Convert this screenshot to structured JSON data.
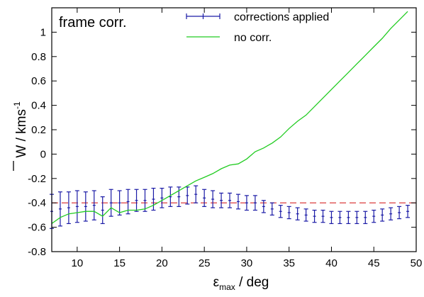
{
  "chart_data": {
    "type": "line",
    "panel_label": "frame corr.",
    "xlabel": {
      "main": "ε",
      "sub": "max",
      "rest": " / deg"
    },
    "ylabel": {
      "main": "W",
      "rest": " / kms",
      "sup": "-1"
    },
    "xlim": [
      7,
      50
    ],
    "ylim": [
      -0.8,
      1.2
    ],
    "xticks": [
      10,
      15,
      20,
      25,
      30,
      35,
      40,
      45,
      50
    ],
    "yticks": [
      -0.8,
      -0.6,
      -0.4,
      -0.2,
      0,
      0.2,
      0.4,
      0.6,
      0.8,
      1
    ],
    "ytick_labels": [
      "-0.8",
      "-0.6",
      "-0.4",
      "-0.2",
      "0",
      "0.2",
      "0.4",
      "0.6",
      "0.8",
      "1"
    ],
    "grid": false,
    "legend_position": "top-center",
    "reference_line": {
      "y": -0.4,
      "color": "#d62728",
      "style": "dashed"
    },
    "series": [
      {
        "name": "corrections applied",
        "kind": "errorbar",
        "color": "#1a1aa6",
        "x": [
          7,
          8,
          9,
          10,
          11,
          12,
          13,
          14,
          15,
          16,
          17,
          18,
          19,
          20,
          21,
          22,
          23,
          24,
          25,
          26,
          27,
          28,
          29,
          30,
          31,
          32,
          33,
          34,
          35,
          36,
          37,
          38,
          39,
          40,
          41,
          42,
          43,
          44,
          45,
          46,
          47,
          48,
          49
        ],
        "y": [
          -0.47,
          -0.45,
          -0.44,
          -0.43,
          -0.43,
          -0.42,
          -0.46,
          -0.4,
          -0.4,
          -0.39,
          -0.38,
          -0.38,
          -0.37,
          -0.36,
          -0.35,
          -0.35,
          -0.34,
          -0.33,
          -0.36,
          -0.37,
          -0.38,
          -0.38,
          -0.39,
          -0.4,
          -0.4,
          -0.43,
          -0.45,
          -0.47,
          -0.48,
          -0.49,
          -0.5,
          -0.51,
          -0.51,
          -0.52,
          -0.52,
          -0.52,
          -0.52,
          -0.52,
          -0.51,
          -0.5,
          -0.49,
          -0.48,
          -0.47
        ],
        "err": [
          0.14,
          0.14,
          0.13,
          0.13,
          0.12,
          0.12,
          0.11,
          0.11,
          0.1,
          0.1,
          0.09,
          0.09,
          0.09,
          0.08,
          0.08,
          0.08,
          0.07,
          0.07,
          0.07,
          0.07,
          0.06,
          0.06,
          0.06,
          0.06,
          0.06,
          0.05,
          0.05,
          0.05,
          0.05,
          0.05,
          0.05,
          0.05,
          0.05,
          0.05,
          0.05,
          0.05,
          0.05,
          0.05,
          0.05,
          0.05,
          0.05,
          0.05,
          0.05
        ]
      },
      {
        "name": "no corr.",
        "kind": "line",
        "color": "#22cc22",
        "x": [
          7,
          8,
          9,
          10,
          11,
          12,
          13,
          14,
          15,
          16,
          17,
          18,
          19,
          20,
          21,
          22,
          23,
          24,
          25,
          26,
          27,
          28,
          29,
          30,
          31,
          32,
          33,
          34,
          35,
          36,
          37,
          38,
          39,
          40,
          41,
          42,
          43,
          44,
          45,
          46,
          47,
          48,
          49
        ],
        "y": [
          -0.57,
          -0.52,
          -0.49,
          -0.48,
          -0.47,
          -0.47,
          -0.51,
          -0.44,
          -0.48,
          -0.46,
          -0.46,
          -0.45,
          -0.42,
          -0.38,
          -0.34,
          -0.3,
          -0.26,
          -0.22,
          -0.19,
          -0.16,
          -0.12,
          -0.09,
          -0.08,
          -0.04,
          0.02,
          0.05,
          0.09,
          0.14,
          0.21,
          0.27,
          0.32,
          0.39,
          0.46,
          0.53,
          0.6,
          0.67,
          0.74,
          0.81,
          0.88,
          0.95,
          1.03,
          1.1,
          1.17
        ]
      }
    ]
  }
}
